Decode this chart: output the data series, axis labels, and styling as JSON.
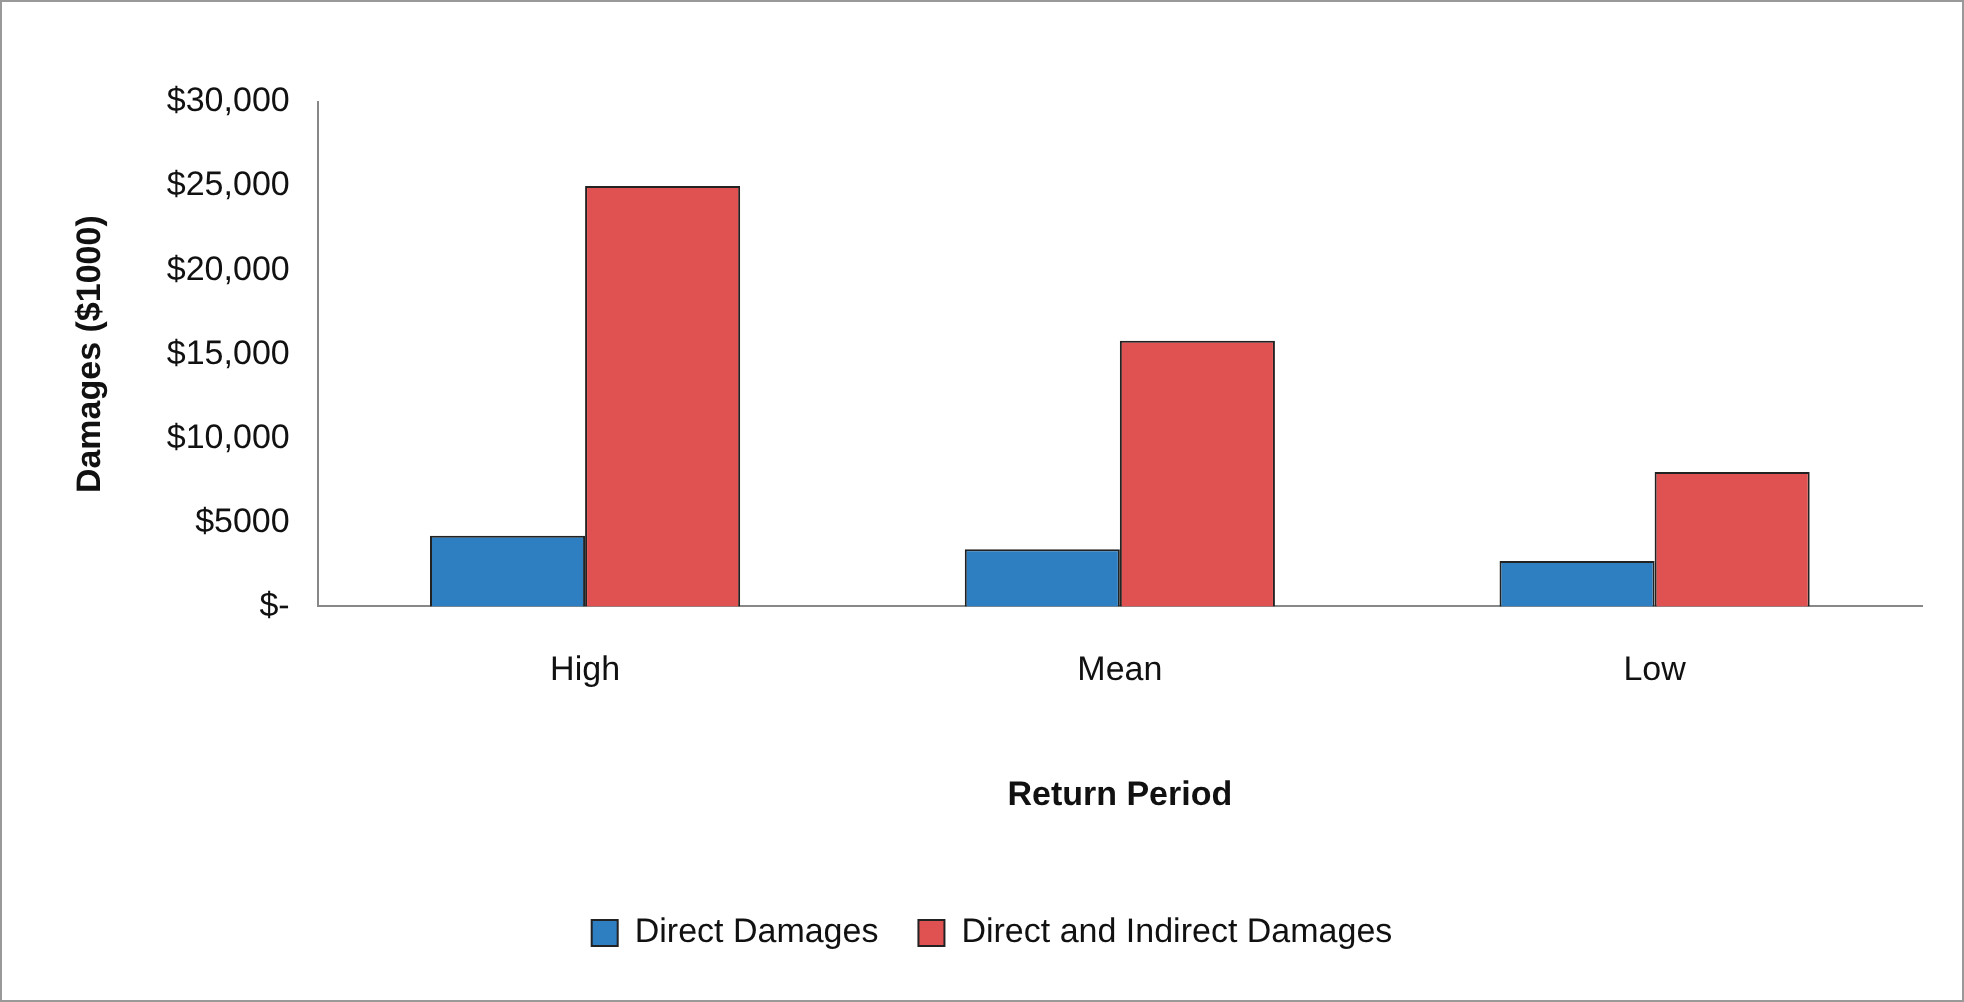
{
  "chart_data": {
    "type": "bar",
    "xlabel": "Return Period",
    "ylabel": "Damages ($1000)",
    "categories": [
      "High",
      "Mean",
      "Low"
    ],
    "series": [
      {
        "name": "Direct Damages",
        "color": "#2e7fc2",
        "values": [
          4200,
          3400,
          2700
        ]
      },
      {
        "name": "Direct and Indirect Damages",
        "color": "#e05252",
        "values": [
          25000,
          15800,
          8000
        ]
      }
    ],
    "ylim": [
      0,
      30000
    ],
    "yticks": [
      {
        "value": 0,
        "label": "$-"
      },
      {
        "value": 5000,
        "label": "$5000"
      },
      {
        "value": 10000,
        "label": "$10,000"
      },
      {
        "value": 15000,
        "label": "$15,000"
      },
      {
        "value": 20000,
        "label": "$20,000"
      },
      {
        "value": 25000,
        "label": "$25,000"
      },
      {
        "value": 30000,
        "label": "$30,000"
      }
    ],
    "grid": false,
    "legend": "bottom"
  }
}
